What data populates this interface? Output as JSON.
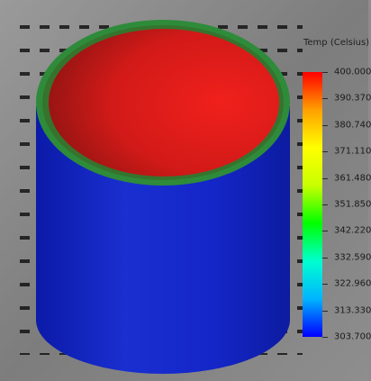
{
  "legend": {
    "title": "Temp (Celsius)",
    "ticks": [
      "400.000",
      "390.370",
      "380.740",
      "371.110",
      "361.480",
      "351.850",
      "342.220",
      "332.590",
      "322.960",
      "313.330",
      "303.700"
    ],
    "min": 303.7,
    "max": 400.0,
    "colormap": [
      "#0000ff",
      "#00b4ff",
      "#00ffd0",
      "#00ff00",
      "#c8ff00",
      "#ffff00",
      "#ffa000",
      "#ff0000"
    ]
  },
  "model": {
    "inner_surface_color": "#e8201a",
    "rim_color": "#2e8b3a",
    "outer_wall_color": "#1426c8"
  }
}
